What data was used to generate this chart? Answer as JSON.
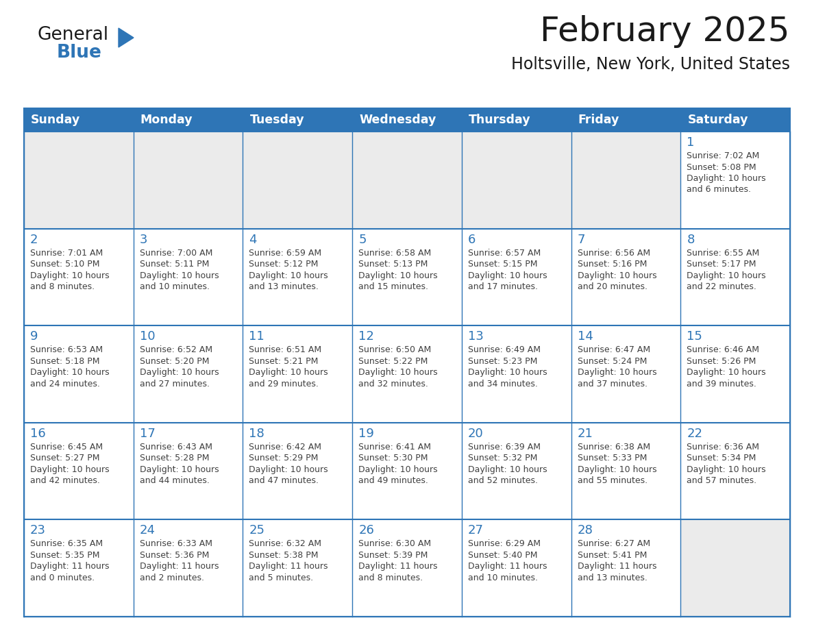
{
  "title": "February 2025",
  "subtitle": "Holtsville, New York, United States",
  "header_bg": "#2E75B6",
  "header_text_color": "#FFFFFF",
  "day_names": [
    "Sunday",
    "Monday",
    "Tuesday",
    "Wednesday",
    "Thursday",
    "Friday",
    "Saturday"
  ],
  "grid_line_color": "#2E75B6",
  "cell_bg": "#FFFFFF",
  "empty_cell_bg": "#EBEBEB",
  "day_num_color": "#2E75B6",
  "info_text_color": "#404040",
  "title_color": "#1a1a1a",
  "subtitle_color": "#1a1a1a",
  "logo_general_color": "#1a1a1a",
  "logo_blue_color": "#2E75B6",
  "calendar": [
    [
      null,
      null,
      null,
      null,
      null,
      null,
      {
        "day": 1,
        "sunrise": "7:02 AM",
        "sunset": "5:08 PM",
        "daylight": "10 hours\nand 6 minutes."
      }
    ],
    [
      {
        "day": 2,
        "sunrise": "7:01 AM",
        "sunset": "5:10 PM",
        "daylight": "10 hours\nand 8 minutes."
      },
      {
        "day": 3,
        "sunrise": "7:00 AM",
        "sunset": "5:11 PM",
        "daylight": "10 hours\nand 10 minutes."
      },
      {
        "day": 4,
        "sunrise": "6:59 AM",
        "sunset": "5:12 PM",
        "daylight": "10 hours\nand 13 minutes."
      },
      {
        "day": 5,
        "sunrise": "6:58 AM",
        "sunset": "5:13 PM",
        "daylight": "10 hours\nand 15 minutes."
      },
      {
        "day": 6,
        "sunrise": "6:57 AM",
        "sunset": "5:15 PM",
        "daylight": "10 hours\nand 17 minutes."
      },
      {
        "day": 7,
        "sunrise": "6:56 AM",
        "sunset": "5:16 PM",
        "daylight": "10 hours\nand 20 minutes."
      },
      {
        "day": 8,
        "sunrise": "6:55 AM",
        "sunset": "5:17 PM",
        "daylight": "10 hours\nand 22 minutes."
      }
    ],
    [
      {
        "day": 9,
        "sunrise": "6:53 AM",
        "sunset": "5:18 PM",
        "daylight": "10 hours\nand 24 minutes."
      },
      {
        "day": 10,
        "sunrise": "6:52 AM",
        "sunset": "5:20 PM",
        "daylight": "10 hours\nand 27 minutes."
      },
      {
        "day": 11,
        "sunrise": "6:51 AM",
        "sunset": "5:21 PM",
        "daylight": "10 hours\nand 29 minutes."
      },
      {
        "day": 12,
        "sunrise": "6:50 AM",
        "sunset": "5:22 PM",
        "daylight": "10 hours\nand 32 minutes."
      },
      {
        "day": 13,
        "sunrise": "6:49 AM",
        "sunset": "5:23 PM",
        "daylight": "10 hours\nand 34 minutes."
      },
      {
        "day": 14,
        "sunrise": "6:47 AM",
        "sunset": "5:24 PM",
        "daylight": "10 hours\nand 37 minutes."
      },
      {
        "day": 15,
        "sunrise": "6:46 AM",
        "sunset": "5:26 PM",
        "daylight": "10 hours\nand 39 minutes."
      }
    ],
    [
      {
        "day": 16,
        "sunrise": "6:45 AM",
        "sunset": "5:27 PM",
        "daylight": "10 hours\nand 42 minutes."
      },
      {
        "day": 17,
        "sunrise": "6:43 AM",
        "sunset": "5:28 PM",
        "daylight": "10 hours\nand 44 minutes."
      },
      {
        "day": 18,
        "sunrise": "6:42 AM",
        "sunset": "5:29 PM",
        "daylight": "10 hours\nand 47 minutes."
      },
      {
        "day": 19,
        "sunrise": "6:41 AM",
        "sunset": "5:30 PM",
        "daylight": "10 hours\nand 49 minutes."
      },
      {
        "day": 20,
        "sunrise": "6:39 AM",
        "sunset": "5:32 PM",
        "daylight": "10 hours\nand 52 minutes."
      },
      {
        "day": 21,
        "sunrise": "6:38 AM",
        "sunset": "5:33 PM",
        "daylight": "10 hours\nand 55 minutes."
      },
      {
        "day": 22,
        "sunrise": "6:36 AM",
        "sunset": "5:34 PM",
        "daylight": "10 hours\nand 57 minutes."
      }
    ],
    [
      {
        "day": 23,
        "sunrise": "6:35 AM",
        "sunset": "5:35 PM",
        "daylight": "11 hours\nand 0 minutes."
      },
      {
        "day": 24,
        "sunrise": "6:33 AM",
        "sunset": "5:36 PM",
        "daylight": "11 hours\nand 2 minutes."
      },
      {
        "day": 25,
        "sunrise": "6:32 AM",
        "sunset": "5:38 PM",
        "daylight": "11 hours\nand 5 minutes."
      },
      {
        "day": 26,
        "sunrise": "6:30 AM",
        "sunset": "5:39 PM",
        "daylight": "11 hours\nand 8 minutes."
      },
      {
        "day": 27,
        "sunrise": "6:29 AM",
        "sunset": "5:40 PM",
        "daylight": "11 hours\nand 10 minutes."
      },
      {
        "day": 28,
        "sunrise": "6:27 AM",
        "sunset": "5:41 PM",
        "daylight": "11 hours\nand 13 minutes."
      },
      null
    ]
  ]
}
